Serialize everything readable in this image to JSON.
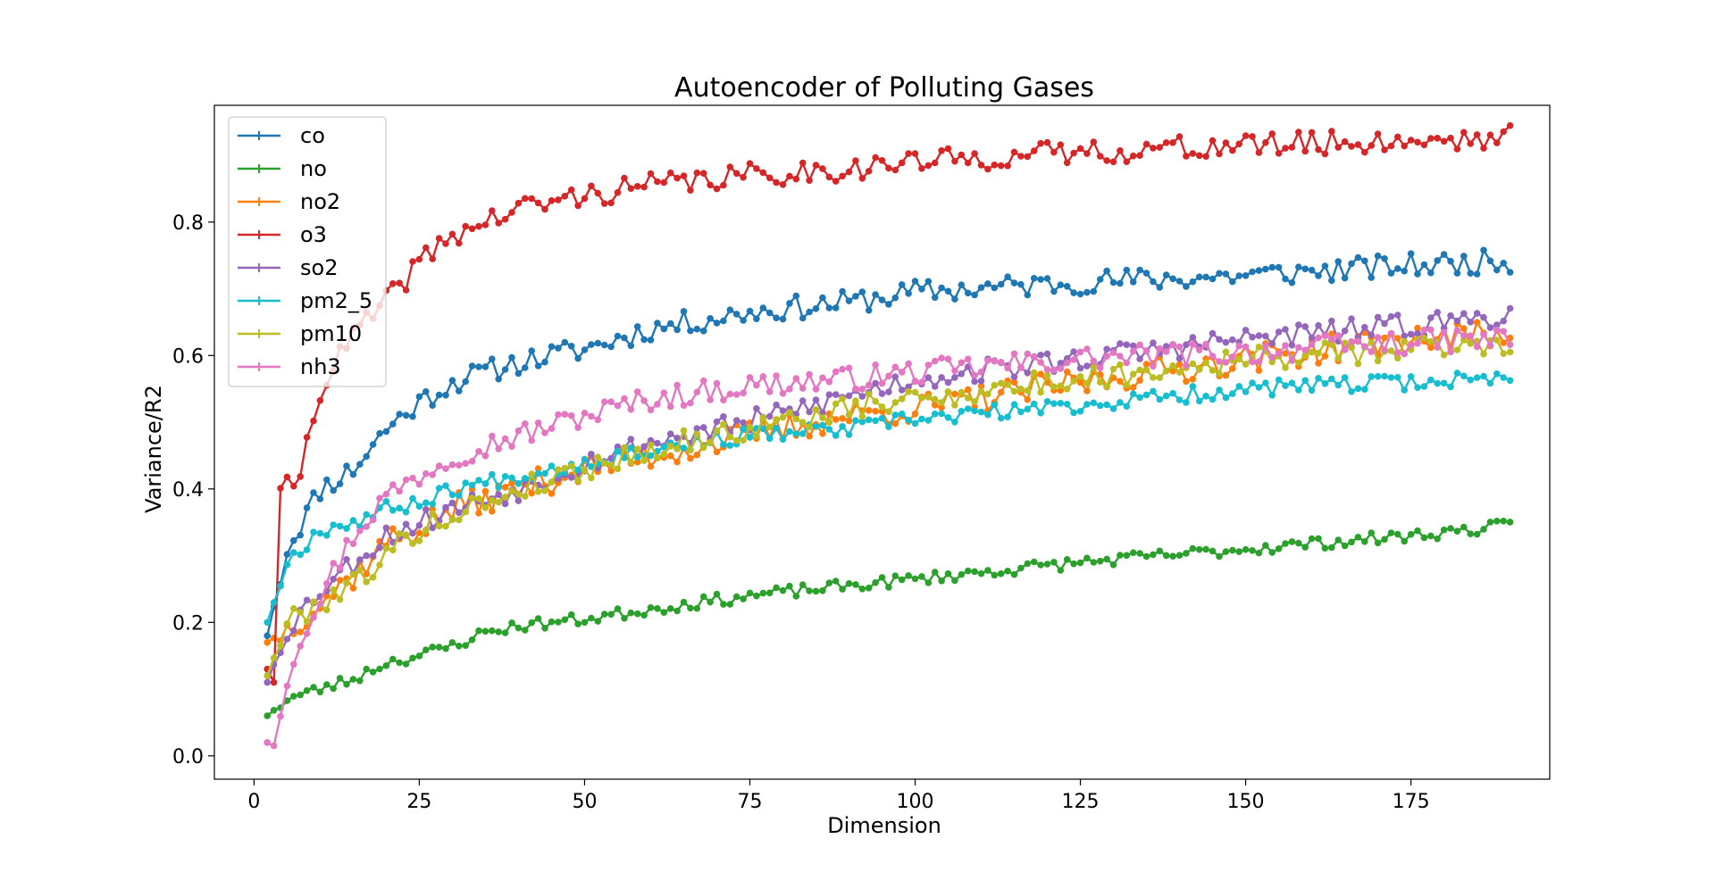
{
  "chart_data": {
    "type": "line",
    "title": "Autoencoder of Polluting Gases",
    "xlabel": "Dimension",
    "ylabel": "Variance/R2",
    "xlim": [
      -6,
      196
    ],
    "ylim": [
      -0.035,
      0.975
    ],
    "x_ticks": [
      0,
      25,
      50,
      75,
      100,
      125,
      150,
      175
    ],
    "y_ticks": [
      0.0,
      0.2,
      0.4,
      0.6,
      0.8
    ],
    "y_tick_labels": [
      "0.0",
      "0.2",
      "0.4",
      "0.6",
      "0.8"
    ],
    "x_start": 2,
    "x_end": 190,
    "legend_position": "upper-left",
    "grid": false,
    "series": [
      {
        "name": "co",
        "color": "#1f77b4",
        "anchors": [
          [
            2,
            0.18
          ],
          [
            5,
            0.31
          ],
          [
            10,
            0.4
          ],
          [
            15,
            0.43
          ],
          [
            20,
            0.49
          ],
          [
            25,
            0.53
          ],
          [
            30,
            0.56
          ],
          [
            40,
            0.59
          ],
          [
            50,
            0.61
          ],
          [
            60,
            0.64
          ],
          [
            75,
            0.665
          ],
          [
            90,
            0.68
          ],
          [
            100,
            0.695
          ],
          [
            125,
            0.71
          ],
          [
            150,
            0.72
          ],
          [
            175,
            0.735
          ],
          [
            190,
            0.742
          ]
        ],
        "noise": 0.018,
        "seed": 11
      },
      {
        "name": "no",
        "color": "#2ca02c",
        "anchors": [
          [
            2,
            0.06
          ],
          [
            5,
            0.085
          ],
          [
            10,
            0.1
          ],
          [
            15,
            0.115
          ],
          [
            20,
            0.14
          ],
          [
            25,
            0.15
          ],
          [
            30,
            0.165
          ],
          [
            35,
            0.185
          ],
          [
            40,
            0.195
          ],
          [
            50,
            0.205
          ],
          [
            60,
            0.22
          ],
          [
            75,
            0.24
          ],
          [
            90,
            0.255
          ],
          [
            100,
            0.265
          ],
          [
            125,
            0.29
          ],
          [
            150,
            0.31
          ],
          [
            175,
            0.33
          ],
          [
            190,
            0.345
          ]
        ],
        "noise": 0.009,
        "seed": 23
      },
      {
        "name": "no2",
        "color": "#ff7f0e",
        "anchors": [
          [
            2,
            0.17
          ],
          [
            5,
            0.19
          ],
          [
            10,
            0.23
          ],
          [
            15,
            0.27
          ],
          [
            20,
            0.32
          ],
          [
            25,
            0.34
          ],
          [
            30,
            0.37
          ],
          [
            40,
            0.4
          ],
          [
            50,
            0.43
          ],
          [
            60,
            0.45
          ],
          [
            75,
            0.48
          ],
          [
            90,
            0.51
          ],
          [
            100,
            0.52
          ],
          [
            125,
            0.56
          ],
          [
            150,
            0.595
          ],
          [
            175,
            0.625
          ],
          [
            190,
            0.632
          ]
        ],
        "noise": 0.022,
        "seed": 37
      },
      {
        "name": "o3",
        "color": "#d62728",
        "anchors": [
          [
            2,
            0.13
          ],
          [
            3,
            0.11
          ],
          [
            4,
            0.41
          ],
          [
            6,
            0.39
          ],
          [
            8,
            0.47
          ],
          [
            10,
            0.55
          ],
          [
            15,
            0.63
          ],
          [
            20,
            0.68
          ],
          [
            25,
            0.74
          ],
          [
            30,
            0.78
          ],
          [
            40,
            0.82
          ],
          [
            50,
            0.84
          ],
          [
            60,
            0.855
          ],
          [
            75,
            0.87
          ],
          [
            90,
            0.88
          ],
          [
            100,
            0.89
          ],
          [
            125,
            0.905
          ],
          [
            150,
            0.915
          ],
          [
            175,
            0.922
          ],
          [
            190,
            0.928
          ]
        ],
        "noise": 0.018,
        "seed": 41
      },
      {
        "name": "so2",
        "color": "#9467bd",
        "anchors": [
          [
            2,
            0.11
          ],
          [
            5,
            0.19
          ],
          [
            10,
            0.25
          ],
          [
            15,
            0.29
          ],
          [
            20,
            0.33
          ],
          [
            25,
            0.35
          ],
          [
            30,
            0.37
          ],
          [
            40,
            0.4
          ],
          [
            50,
            0.44
          ],
          [
            60,
            0.47
          ],
          [
            75,
            0.5
          ],
          [
            90,
            0.54
          ],
          [
            100,
            0.565
          ],
          [
            125,
            0.595
          ],
          [
            150,
            0.625
          ],
          [
            175,
            0.645
          ],
          [
            190,
            0.662
          ]
        ],
        "noise": 0.018,
        "seed": 53
      },
      {
        "name": "pm2_5",
        "color": "#17becf",
        "anchors": [
          [
            2,
            0.2
          ],
          [
            5,
            0.29
          ],
          [
            10,
            0.34
          ],
          [
            15,
            0.35
          ],
          [
            20,
            0.37
          ],
          [
            25,
            0.38
          ],
          [
            30,
            0.4
          ],
          [
            40,
            0.42
          ],
          [
            50,
            0.44
          ],
          [
            60,
            0.46
          ],
          [
            75,
            0.48
          ],
          [
            90,
            0.49
          ],
          [
            100,
            0.505
          ],
          [
            125,
            0.525
          ],
          [
            150,
            0.55
          ],
          [
            175,
            0.56
          ],
          [
            190,
            0.567
          ]
        ],
        "noise": 0.012,
        "seed": 67
      },
      {
        "name": "pm10",
        "color": "#bcbd22",
        "anchors": [
          [
            2,
            0.12
          ],
          [
            5,
            0.2
          ],
          [
            10,
            0.23
          ],
          [
            15,
            0.26
          ],
          [
            20,
            0.3
          ],
          [
            25,
            0.34
          ],
          [
            30,
            0.36
          ],
          [
            40,
            0.4
          ],
          [
            50,
            0.43
          ],
          [
            60,
            0.46
          ],
          [
            75,
            0.49
          ],
          [
            90,
            0.52
          ],
          [
            100,
            0.535
          ],
          [
            125,
            0.565
          ],
          [
            150,
            0.595
          ],
          [
            175,
            0.61
          ],
          [
            190,
            0.62
          ]
        ],
        "noise": 0.018,
        "seed": 79
      },
      {
        "name": "nh3",
        "color": "#e377c2",
        "anchors": [
          [
            2,
            0.02
          ],
          [
            3,
            0.015
          ],
          [
            5,
            0.12
          ],
          [
            8,
            0.2
          ],
          [
            10,
            0.24
          ],
          [
            15,
            0.33
          ],
          [
            20,
            0.39
          ],
          [
            25,
            0.42
          ],
          [
            30,
            0.45
          ],
          [
            40,
            0.48
          ],
          [
            50,
            0.51
          ],
          [
            60,
            0.535
          ],
          [
            75,
            0.555
          ],
          [
            90,
            0.565
          ],
          [
            100,
            0.575
          ],
          [
            125,
            0.595
          ],
          [
            150,
            0.605
          ],
          [
            175,
            0.62
          ],
          [
            190,
            0.625
          ]
        ],
        "noise": 0.018,
        "seed": 97
      }
    ]
  }
}
